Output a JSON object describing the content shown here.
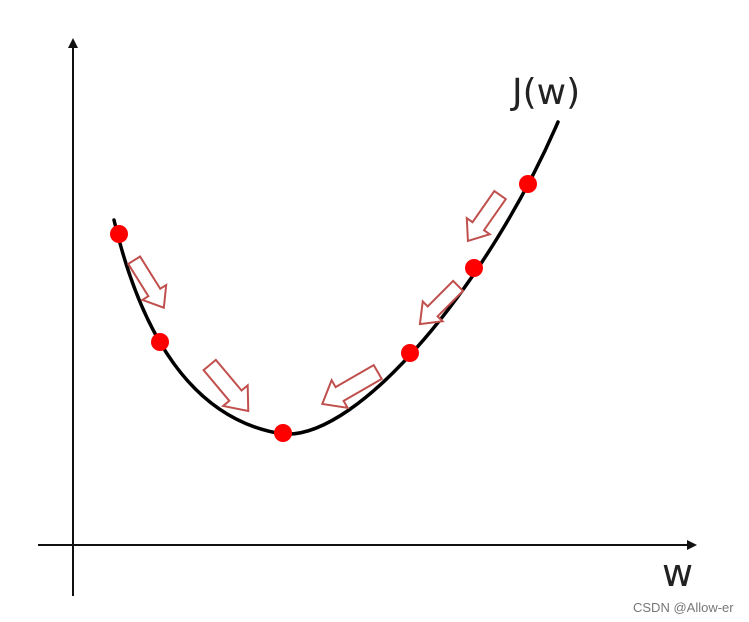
{
  "labels": {
    "curve": "J(w)",
    "x_axis": "w"
  },
  "watermark": "CSDN @Allow-er",
  "colors": {
    "curve": "#000000",
    "axis": "#111111",
    "point": "#ff0000",
    "arrow_stroke": "#c0504d",
    "arrow_fill": "#ffffff"
  },
  "points": [
    {
      "id": "p1"
    },
    {
      "id": "p2"
    },
    {
      "id": "minimum"
    },
    {
      "id": "p4"
    },
    {
      "id": "p5"
    },
    {
      "id": "p6"
    }
  ],
  "arrows": [
    {
      "id": "left-upper",
      "direction": "down-right"
    },
    {
      "id": "left-lower",
      "direction": "down-right"
    },
    {
      "id": "right-lower",
      "direction": "down-left"
    },
    {
      "id": "right-middle",
      "direction": "down-left"
    },
    {
      "id": "right-upper",
      "direction": "down-left"
    }
  ]
}
